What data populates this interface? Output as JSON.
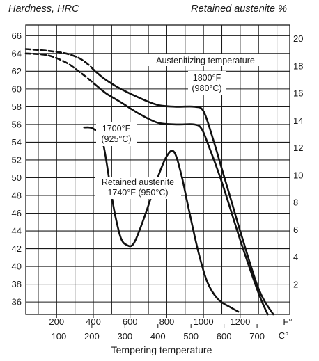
{
  "chart_data": {
    "type": "line",
    "header": {
      "left_title": "Hardness, HRC",
      "right_title": "Retained austenite %"
    },
    "xlabel": "Tempering temperature",
    "x_units_f": "F°",
    "x_units_c": "C°",
    "x_range_f": [
      32,
      1470
    ],
    "x_ticks_f": [
      "200",
      "400",
      "600",
      "800",
      "1000",
      "1200"
    ],
    "x_ticks_c": [
      "100",
      "200",
      "300",
      "400",
      "500",
      "600",
      "700"
    ],
    "y_left_ticks": [
      "36",
      "38",
      "40",
      "42",
      "44",
      "46",
      "48",
      "50",
      "52",
      "54",
      "56",
      "58",
      "60",
      "62",
      "64",
      "66"
    ],
    "y_right_ticks": [
      "2",
      "4",
      "6",
      "8",
      "10",
      "12",
      "14",
      "16",
      "18",
      "20"
    ],
    "y_left_range": [
      34.6,
      67.2
    ],
    "y_right_range": [
      -0.2,
      21
    ],
    "annotations": {
      "austenitizing": "Austenitizing temperature",
      "t1800_f": "1800°F",
      "t1800_c": "(980°C)",
      "t1700_f": "1700°F",
      "t1700_c": "(925°C)",
      "ra_line1": "Retained austenite",
      "ra_line2": "1740°F (950°C)"
    },
    "series": [
      {
        "axis": "left",
        "style": "dashed",
        "points": [
          [
            32,
            64.5
          ],
          [
            150,
            64.3
          ],
          [
            250,
            64.0
          ],
          [
            320,
            63.5
          ],
          [
            370,
            62.8
          ],
          [
            410,
            62.0
          ]
        ]
      },
      {
        "axis": "left",
        "style": "solid",
        "points": [
          [
            410,
            62.0
          ],
          [
            470,
            61.0
          ],
          [
            550,
            60.0
          ],
          [
            650,
            59.0
          ],
          [
            750,
            58.2
          ],
          [
            850,
            58.0
          ],
          [
            950,
            58.0
          ],
          [
            1000,
            57.5
          ],
          [
            1050,
            54.5
          ],
          [
            1100,
            51.0
          ],
          [
            1150,
            47.5
          ],
          [
            1200,
            44.0
          ],
          [
            1300,
            37.5
          ],
          [
            1380,
            34.6
          ]
        ]
      },
      {
        "axis": "left",
        "style": "dashed",
        "points": [
          [
            32,
            64.0
          ],
          [
            150,
            63.8
          ],
          [
            250,
            63.0
          ],
          [
            320,
            62.0
          ],
          [
            370,
            61.2
          ],
          [
            410,
            60.5
          ]
        ]
      },
      {
        "axis": "left",
        "style": "solid",
        "points": [
          [
            410,
            60.5
          ],
          [
            470,
            59.5
          ],
          [
            550,
            58.5
          ],
          [
            650,
            57.2
          ],
          [
            750,
            56.2
          ],
          [
            850,
            56.0
          ],
          [
            950,
            56.0
          ],
          [
            990,
            55.5
          ],
          [
            1030,
            53.5
          ],
          [
            1100,
            49.5
          ],
          [
            1200,
            43.0
          ],
          [
            1300,
            37.0
          ],
          [
            1350,
            34.6
          ]
        ]
      },
      {
        "axis": "right",
        "style": "solid",
        "points": [
          [
            350,
            13.5
          ],
          [
            400,
            13.4
          ],
          [
            450,
            12.5
          ],
          [
            500,
            8.5
          ],
          [
            520,
            7.0
          ],
          [
            550,
            5.4
          ],
          [
            580,
            4.9
          ],
          [
            620,
            5.0
          ],
          [
            680,
            7.0
          ],
          [
            750,
            9.8
          ],
          [
            800,
            11.4
          ],
          [
            840,
            11.7
          ],
          [
            880,
            10.0
          ],
          [
            920,
            7.5
          ],
          [
            970,
            4.5
          ],
          [
            1020,
            2.2
          ],
          [
            1080,
            0.9
          ],
          [
            1150,
            0.3
          ],
          [
            1190,
            0.0
          ]
        ]
      }
    ]
  }
}
